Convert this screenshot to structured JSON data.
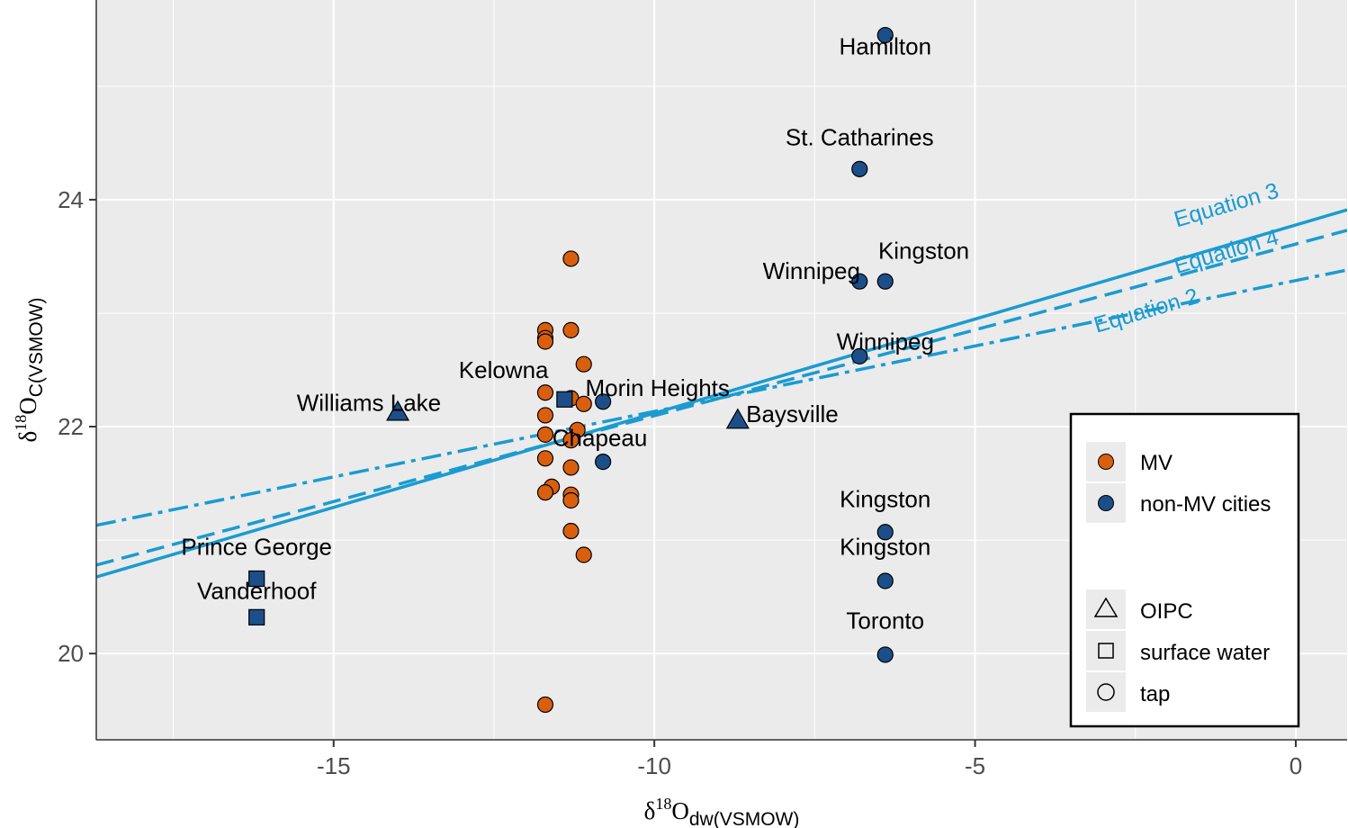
{
  "chart_data": {
    "type": "scatter",
    "xlabel": {
      "base": "δ",
      "sup": "18",
      "main": "O",
      "sub": "dw(VSMOW)"
    },
    "ylabel": {
      "base": "δ",
      "sup": "18",
      "main": "O",
      "sub": "C(VSMOW)"
    },
    "xlim": [
      -18.7,
      0.8
    ],
    "ylim": [
      19.24,
      25.76
    ],
    "x_ticks": [
      -15,
      -10,
      -5,
      0
    ],
    "x_tick_labels": [
      "-15",
      "-10",
      "-5",
      "0"
    ],
    "y_ticks": [
      20,
      22,
      24
    ],
    "y_tick_labels": [
      "20",
      "22",
      "24"
    ],
    "grid": true,
    "colors": {
      "MV": "#d95f0e",
      "non_MV": "#1c4f8a",
      "line": "#1a9bd1",
      "panel": "#ebebeb",
      "grid": "#ffffff"
    },
    "series": [
      {
        "name": "MV",
        "shape": "tap",
        "points": [
          [
            -11.3,
            23.48
          ],
          [
            -11.7,
            22.85
          ],
          [
            -11.7,
            22.78
          ],
          [
            -11.7,
            22.75
          ],
          [
            -11.3,
            22.85
          ],
          [
            -11.1,
            22.55
          ],
          [
            -11.7,
            22.3
          ],
          [
            -11.3,
            22.25
          ],
          [
            -11.1,
            22.2
          ],
          [
            -11.7,
            22.1
          ],
          [
            -11.2,
            21.97
          ],
          [
            -11.7,
            21.93
          ],
          [
            -11.3,
            21.88
          ],
          [
            -11.7,
            21.72
          ],
          [
            -11.3,
            21.64
          ],
          [
            -11.6,
            21.47
          ],
          [
            -11.7,
            21.42
          ],
          [
            -11.3,
            21.4
          ],
          [
            -11.3,
            21.35
          ],
          [
            -11.3,
            21.08
          ],
          [
            -11.1,
            20.87
          ],
          [
            -11.7,
            19.55
          ]
        ]
      },
      {
        "name": "non-MV cities",
        "shape": "tap",
        "points": [
          [
            -6.4,
            25.45
          ],
          [
            -6.8,
            24.27
          ],
          [
            -6.8,
            23.28
          ],
          [
            -6.4,
            23.28
          ],
          [
            -6.8,
            22.62
          ],
          [
            -10.8,
            22.22
          ],
          [
            -10.8,
            21.69
          ],
          [
            -6.4,
            21.07
          ],
          [
            -6.4,
            20.64
          ],
          [
            -6.4,
            19.99
          ]
        ]
      },
      {
        "name": "OIPC",
        "shape": "triangle",
        "points": [
          [
            -14.0,
            22.12
          ],
          [
            -8.7,
            22.05
          ]
        ]
      },
      {
        "name": "surface water",
        "shape": "square",
        "points": [
          [
            -11.4,
            22.24
          ],
          [
            -16.2,
            20.66
          ],
          [
            -16.2,
            20.32
          ]
        ]
      }
    ],
    "point_labels": [
      {
        "text": "Hamilton",
        "x": -6.4,
        "y": 25.28
      },
      {
        "text": "St. Catharines",
        "x": -6.8,
        "y": 24.48
      },
      {
        "text": "Kingston",
        "x": -5.8,
        "y": 23.48
      },
      {
        "text": "Winnipeg",
        "x": -7.55,
        "y": 23.3
      },
      {
        "text": "Winnipeg",
        "x": -6.4,
        "y": 22.68
      },
      {
        "text": "Kelowna",
        "x": -12.35,
        "y": 22.43
      },
      {
        "text": "Morin Heights",
        "x": -9.95,
        "y": 22.27
      },
      {
        "text": "Williams Lake",
        "x": -14.45,
        "y": 22.14
      },
      {
        "text": "Baysville",
        "x": -7.85,
        "y": 22.04
      },
      {
        "text": "Chapeau",
        "x": -10.85,
        "y": 21.83
      },
      {
        "text": "Kingston",
        "x": -6.4,
        "y": 21.29
      },
      {
        "text": "Kingston",
        "x": -6.4,
        "y": 20.87
      },
      {
        "text": "Prince George",
        "x": -16.2,
        "y": 20.87
      },
      {
        "text": "Vanderhoof",
        "x": -16.2,
        "y": 20.48
      },
      {
        "text": "Toronto",
        "x": -6.4,
        "y": 20.22
      }
    ],
    "lines": [
      {
        "name": "Equation 3",
        "style": "solid",
        "x": [
          -18.7,
          0.8
        ],
        "y": [
          20.675,
          23.91
        ]
      },
      {
        "name": "Equation 4",
        "style": "dashed",
        "x": [
          -18.7,
          0.8
        ],
        "y": [
          20.78,
          23.73
        ]
      },
      {
        "name": "Equation 2",
        "style": "dotdash",
        "x": [
          -18.7,
          0.8
        ],
        "y": [
          21.13,
          23.38
        ]
      }
    ],
    "line_labels": [
      {
        "text": "Equation 3",
        "x": -1.05,
        "y": 23.89
      },
      {
        "text": "Equation 4",
        "x": -1.05,
        "y": 23.48
      },
      {
        "text": "Equation 2",
        "x": -2.3,
        "y": 22.96
      }
    ],
    "legend": {
      "position": "bottom-right",
      "color_title": "",
      "color_items": [
        {
          "label": "MV",
          "key": "MV"
        },
        {
          "label": "non-MV cities",
          "key": "non_MV"
        }
      ],
      "shape_items": [
        {
          "label": "OIPC",
          "shape": "triangle"
        },
        {
          "label": "surface water",
          "shape": "square"
        },
        {
          "label": "tap",
          "shape": "circle"
        }
      ]
    }
  }
}
